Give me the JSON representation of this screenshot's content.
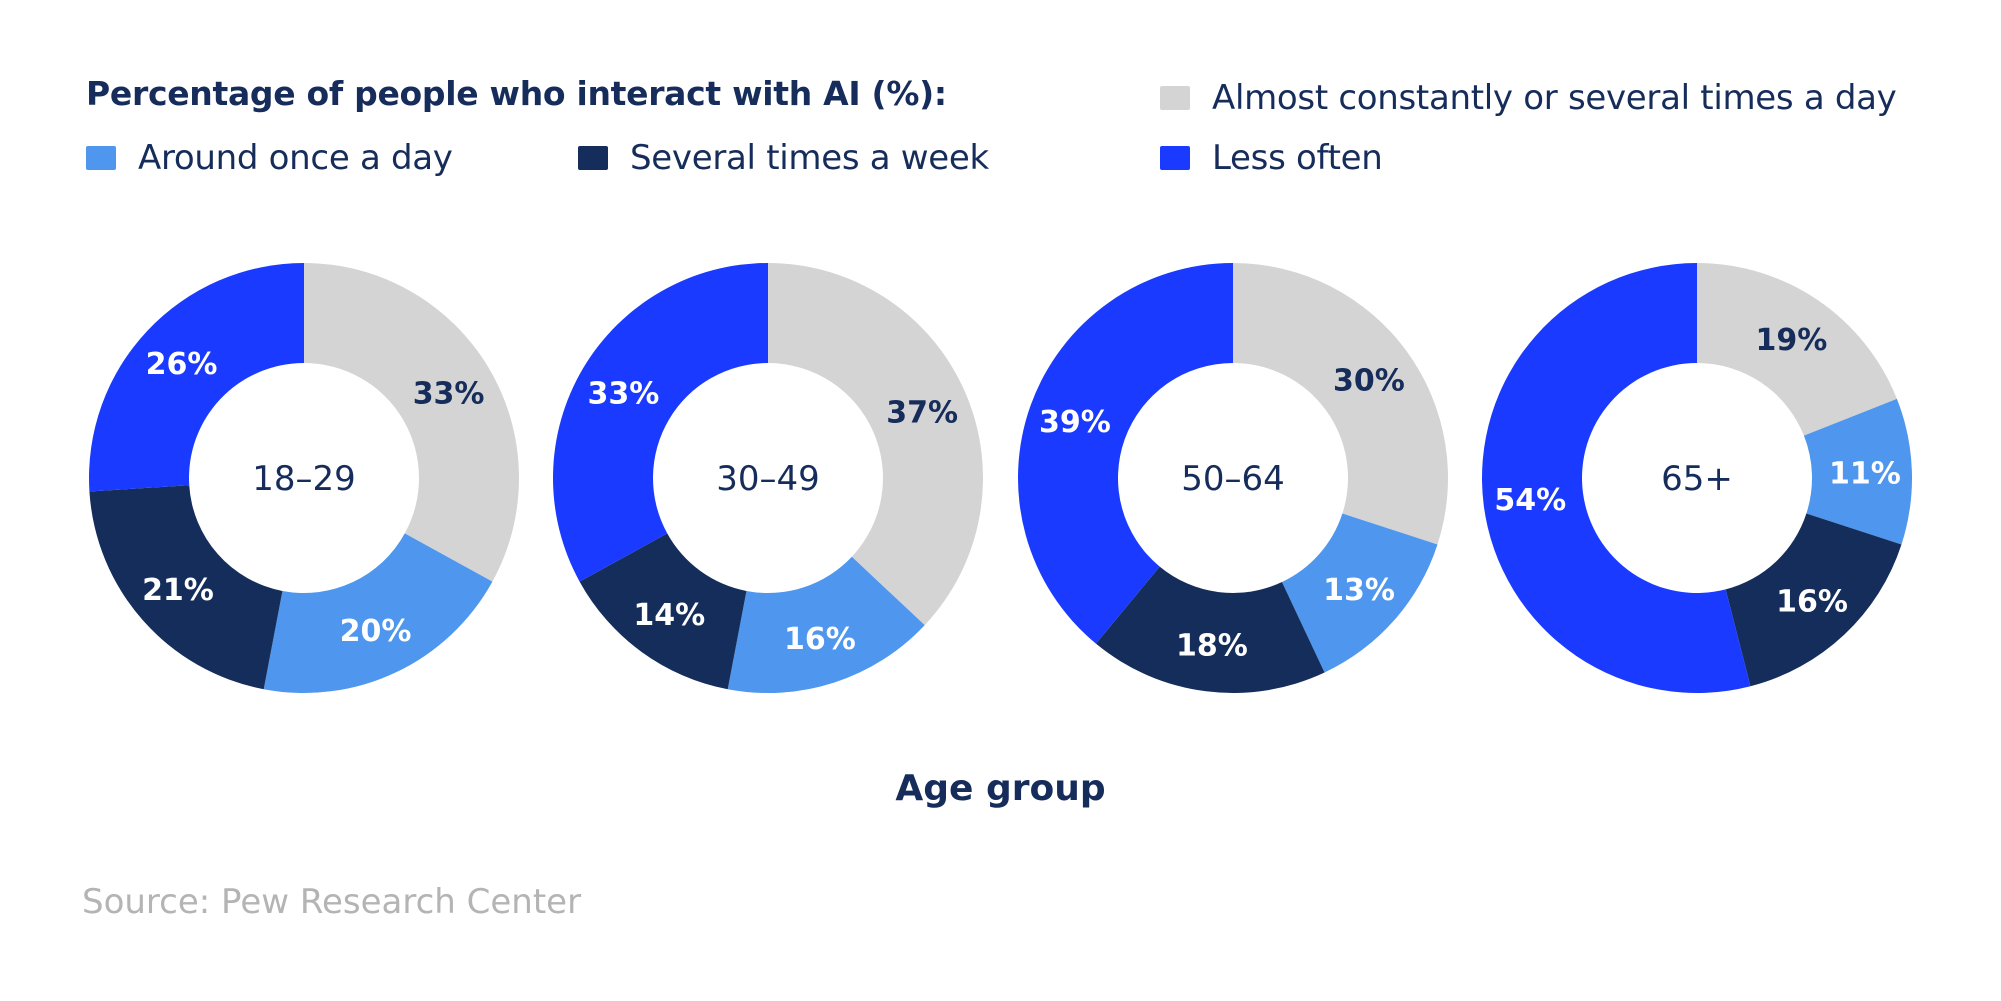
{
  "chart_data": {
    "type": "pie",
    "subtype": "donut",
    "title": "Percentage of people who interact with AI (%):",
    "xlabel": "Age group",
    "legend": [
      {
        "name": "Almost constantly or several times a day",
        "color": "#d4d4d4"
      },
      {
        "name": "Around once a day",
        "color": "#4e96ee"
      },
      {
        "name": "Several times a week",
        "color": "#152d5b"
      },
      {
        "name": "Less often",
        "color": "#1a3bff"
      }
    ],
    "groups": [
      {
        "label": "18–29",
        "values": [
          33,
          20,
          21,
          26
        ]
      },
      {
        "label": "30–49",
        "values": [
          37,
          16,
          14,
          33
        ]
      },
      {
        "label": "50–64",
        "values": [
          30,
          13,
          18,
          39
        ]
      },
      {
        "label": "65+",
        "values": [
          19,
          11,
          16,
          54
        ]
      }
    ],
    "label_colors": [
      "#162c5a",
      "#ffffff",
      "#ffffff",
      "#ffffff"
    ]
  },
  "source": "Source: Pew Research Center"
}
